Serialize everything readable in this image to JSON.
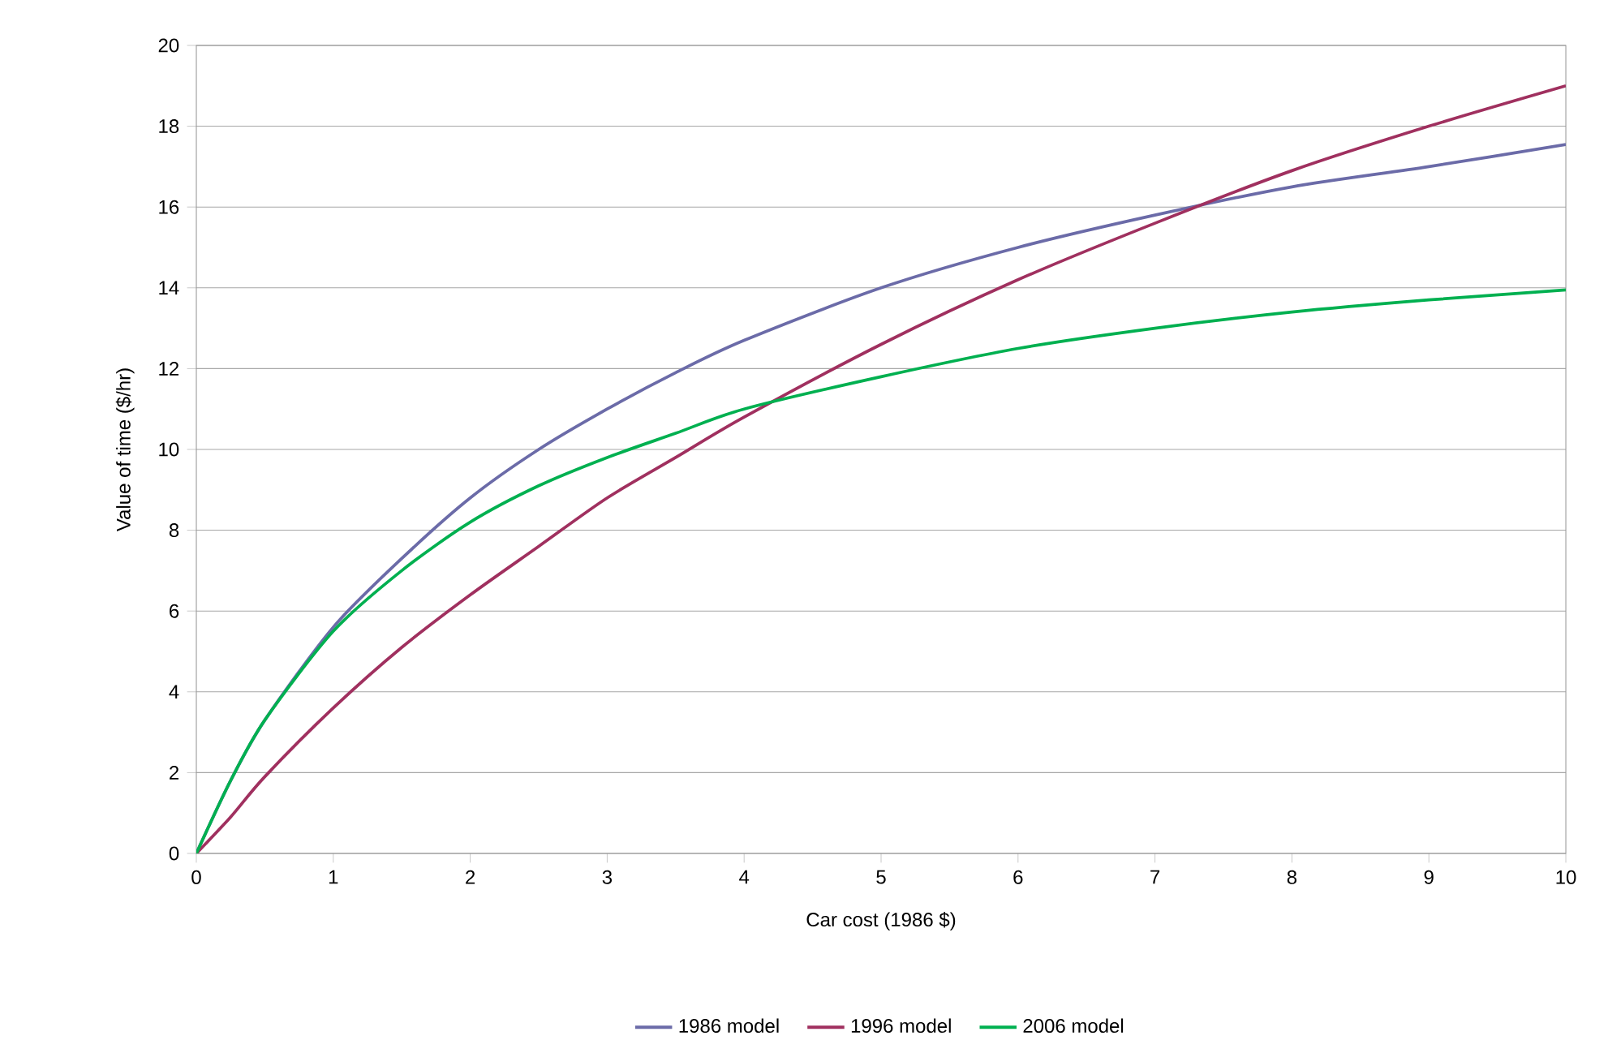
{
  "chart_data": {
    "type": "line",
    "xlabel": "Car cost (1986 $)",
    "ylabel": "Value of time ($/hr)",
    "xlim": [
      0,
      10
    ],
    "ylim": [
      0,
      20
    ],
    "xticks": [
      0,
      1,
      2,
      3,
      4,
      5,
      6,
      7,
      8,
      9,
      10
    ],
    "yticks": [
      0,
      2,
      4,
      6,
      8,
      10,
      12,
      14,
      16,
      18,
      20
    ],
    "grid": "y",
    "legend": "bottom",
    "x": [
      0,
      0.25,
      0.5,
      1,
      1.5,
      2,
      2.5,
      3,
      3.5,
      4,
      5,
      6,
      7,
      8,
      9,
      10
    ],
    "series": [
      {
        "name": "1986 model",
        "color": "#6b6ba8",
        "values": [
          0,
          1.8,
          3.3,
          5.6,
          7.3,
          8.8,
          10.0,
          11.0,
          11.9,
          12.7,
          14.0,
          15.0,
          15.8,
          16.5,
          17.0,
          17.55
        ]
      },
      {
        "name": "1996 model",
        "color": "#a0305f",
        "values": [
          0,
          0.9,
          1.9,
          3.6,
          5.1,
          6.4,
          7.6,
          8.8,
          9.8,
          10.8,
          12.6,
          14.2,
          15.6,
          16.9,
          18.0,
          19.0
        ]
      },
      {
        "name": "2006 model",
        "color": "#00b050",
        "values": [
          0,
          1.8,
          3.3,
          5.5,
          7.0,
          8.2,
          9.1,
          9.8,
          10.4,
          11.0,
          11.8,
          12.5,
          13.0,
          13.4,
          13.7,
          13.95
        ]
      }
    ]
  }
}
